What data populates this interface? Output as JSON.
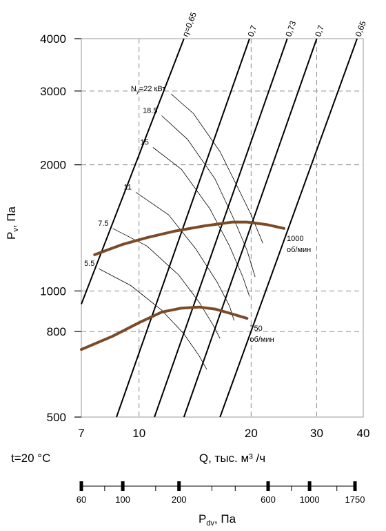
{
  "chart_data": {
    "type": "line",
    "x_scale": "log",
    "y_scale": "log",
    "xlim": [
      7,
      40
    ],
    "ylim": [
      500,
      4000
    ],
    "x_ticks": [
      7,
      10,
      20,
      30,
      40
    ],
    "y_ticks": [
      500,
      800,
      1000,
      2000,
      3000,
      4000
    ],
    "grid": "dashed",
    "xlabel": "Q, тыс. м³ /ч",
    "ylabel_main": "P",
    "ylabel_sub": "v",
    "ylabel_unit": ", Па",
    "temperature": "t=20 °C",
    "efficiency_prefix": "η=",
    "efficiency_lines": [
      {
        "label": "0,65",
        "points": [
          [
            7,
            930
          ],
          [
            13.2,
            4000
          ]
        ]
      },
      {
        "label": "0,7",
        "points": [
          [
            8.7,
            500
          ],
          [
            19.8,
            4000
          ]
        ]
      },
      {
        "label": "0,73",
        "points": [
          [
            11.0,
            500
          ],
          [
            25.0,
            4000
          ]
        ]
      },
      {
        "label": "0,7",
        "points": [
          [
            13.2,
            500
          ],
          [
            30.0,
            4000
          ]
        ]
      },
      {
        "label": "0,65",
        "points": [
          [
            16.5,
            500
          ],
          [
            38.5,
            4000
          ]
        ]
      }
    ],
    "power_prefix": "N",
    "power_sub": "y",
    "power_unit": "=22 кВт",
    "power_lines": [
      {
        "label": "22",
        "points": [
          [
            12.2,
            2950
          ],
          [
            14.0,
            2650
          ],
          [
            16.5,
            2150
          ],
          [
            18.5,
            1750
          ],
          [
            20.0,
            1520
          ],
          [
            21.5,
            1300
          ]
        ]
      },
      {
        "label": "18.5",
        "points": [
          [
            11.5,
            2620
          ],
          [
            13.5,
            2300
          ],
          [
            16.0,
            1850
          ],
          [
            18.0,
            1480
          ],
          [
            19.5,
            1250
          ],
          [
            20.5,
            1080
          ]
        ]
      },
      {
        "label": "15",
        "points": [
          [
            10.9,
            2200
          ],
          [
            13.0,
            1950
          ],
          [
            15.5,
            1570
          ],
          [
            17.5,
            1280
          ],
          [
            19.0,
            1080
          ],
          [
            19.8,
            970
          ]
        ]
      },
      {
        "label": "11",
        "points": [
          [
            9.8,
            1720
          ],
          [
            12.0,
            1520
          ],
          [
            14.2,
            1260
          ],
          [
            16.2,
            1050
          ],
          [
            17.5,
            920
          ],
          [
            18.0,
            850
          ]
        ]
      },
      {
        "label": "7.5",
        "points": [
          [
            8.5,
            1410
          ],
          [
            10.5,
            1280
          ],
          [
            12.8,
            1090
          ],
          [
            14.5,
            940
          ],
          [
            15.8,
            830
          ],
          [
            16.5,
            770
          ]
        ]
      },
      {
        "label": "5.5",
        "points": [
          [
            7.8,
            1130
          ],
          [
            9.5,
            1030
          ],
          [
            11.5,
            900
          ],
          [
            13.2,
            790
          ],
          [
            14.5,
            700
          ],
          [
            15.2,
            650
          ]
        ]
      }
    ],
    "series": [
      {
        "name": "1000 об/мин",
        "label_top": "1000",
        "label_bottom": "об/мин",
        "points": [
          [
            7.6,
            1220
          ],
          [
            9.0,
            1290
          ],
          [
            10.5,
            1340
          ],
          [
            12.5,
            1390
          ],
          [
            15.0,
            1430
          ],
          [
            17.8,
            1460
          ],
          [
            19.5,
            1460
          ],
          [
            22.0,
            1440
          ],
          [
            24.5,
            1410
          ]
        ]
      },
      {
        "name": "750 об/мин",
        "label_top": "750",
        "label_bottom": "об/мин",
        "points": [
          [
            7.0,
            725
          ],
          [
            8.5,
            780
          ],
          [
            10.0,
            840
          ],
          [
            11.5,
            890
          ],
          [
            13.0,
            910
          ],
          [
            14.5,
            915
          ],
          [
            16.0,
            905
          ],
          [
            17.5,
            885
          ],
          [
            19.5,
            860
          ]
        ]
      }
    ],
    "dv_axis": {
      "title_main": "P",
      "title_sub": "dv",
      "title_unit": ", Па",
      "range": [
        60,
        1750
      ],
      "ticks": [
        60,
        100,
        200,
        600,
        1000,
        1750
      ],
      "major": [
        60,
        100,
        200,
        600,
        1000,
        1750
      ],
      "minor": [
        80,
        150,
        300,
        400,
        800,
        1400
      ]
    }
  }
}
